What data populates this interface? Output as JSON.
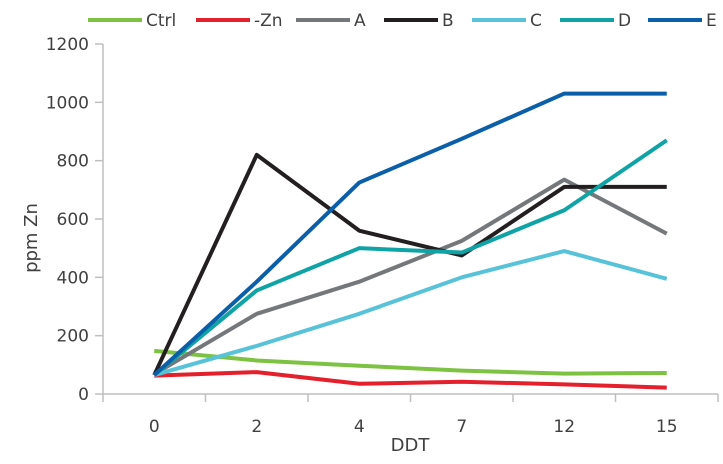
{
  "chart_data": {
    "type": "line",
    "title": "",
    "xlabel": "DDT",
    "ylabel": "ppm Zn",
    "categories": [
      "0",
      "2",
      "4",
      "7",
      "12",
      "15"
    ],
    "ylim": [
      0,
      1200
    ],
    "yticks": [
      "0",
      "200",
      "400",
      "600",
      "800",
      "1000",
      "1200"
    ],
    "grid": false,
    "legend_position": "top",
    "series": [
      {
        "name": "Ctrl",
        "color": "#7dc242",
        "values": [
          148,
          115,
          97,
          80,
          70,
          72
        ]
      },
      {
        "name": "-Zn",
        "color": "#e3202b",
        "values": [
          63,
          75,
          35,
          42,
          33,
          22
        ]
      },
      {
        "name": "A",
        "color": "#75787b",
        "values": [
          68,
          275,
          385,
          525,
          735,
          550
        ]
      },
      {
        "name": "B",
        "color": "#231f20",
        "values": [
          65,
          820,
          560,
          475,
          710,
          710
        ]
      },
      {
        "name": "C",
        "color": "#57c2d8",
        "values": [
          65,
          165,
          275,
          400,
          490,
          395
        ]
      },
      {
        "name": "D",
        "color": "#0fa3a5",
        "values": [
          65,
          355,
          500,
          485,
          630,
          870
        ]
      },
      {
        "name": "E",
        "color": "#0b5ea8",
        "values": [
          65,
          385,
          725,
          875,
          1030,
          1030
        ]
      }
    ]
  }
}
